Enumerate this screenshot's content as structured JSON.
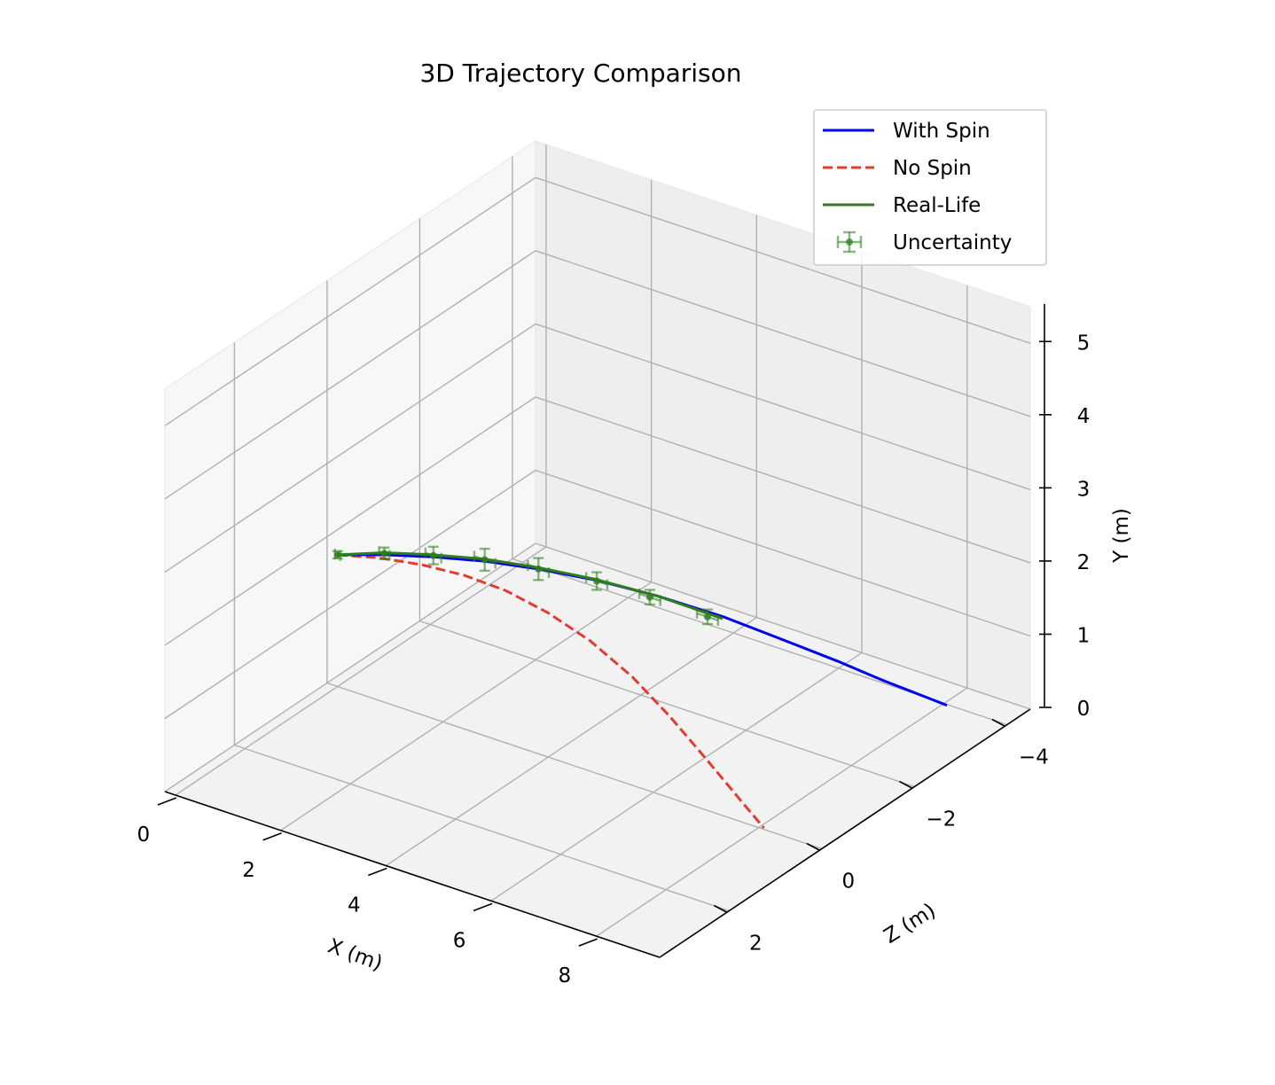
{
  "chart_data": {
    "type": "line",
    "projection": "3d",
    "title": "3D Trajectory Comparison",
    "xlabel": "X (m)",
    "ylabel": "Y (m)",
    "zlabel": "Z (m)",
    "xlim": [
      -0.2,
      9.2
    ],
    "ylim": [
      0,
      5.5
    ],
    "zlim": [
      -4.5,
      3.5
    ],
    "x_ticks": [
      0,
      2,
      4,
      6,
      8
    ],
    "y_ticks": [
      0,
      1,
      2,
      3,
      4,
      5
    ],
    "z_ticks": [
      -4,
      -2,
      0,
      2
    ],
    "x_tick_labels": [
      "0",
      "2",
      "4",
      "6",
      "8"
    ],
    "y_tick_labels": [
      "0",
      "1",
      "2",
      "3",
      "4",
      "5"
    ],
    "z_tick_labels": [
      "−4",
      "−2",
      "0",
      "2"
    ],
    "grid": true,
    "legend_position": "top-right",
    "series": [
      {
        "name": "With Spin",
        "color": "#0000ee",
        "style": "solid",
        "x": [
          0,
          0.8,
          1.6,
          2.4,
          3.2,
          4.0,
          4.8,
          5.6,
          6.3,
          6.9,
          7.4,
          7.8,
          8.1
        ],
        "y": [
          1.8,
          1.95,
          2.05,
          2.1,
          2.08,
          1.97,
          1.78,
          1.48,
          1.12,
          0.76,
          0.45,
          0.2,
          0.02
        ],
        "z": [
          0,
          -0.1,
          -0.25,
          -0.45,
          -0.7,
          -1.05,
          -1.45,
          -1.95,
          -2.45,
          -2.95,
          -3.35,
          -3.7,
          -3.95
        ]
      },
      {
        "name": "No Spin",
        "color": "#e03c31",
        "style": "dashed",
        "x": [
          0,
          0.8,
          1.6,
          2.4,
          3.2,
          4.0,
          4.8,
          5.6,
          6.3,
          6.9,
          7.4,
          7.8,
          8.1
        ],
        "y": [
          1.8,
          1.95,
          2.05,
          2.1,
          2.08,
          1.97,
          1.78,
          1.48,
          1.12,
          0.76,
          0.45,
          0.2,
          0.02
        ],
        "z": [
          0,
          0,
          0,
          0,
          0,
          0,
          0,
          0,
          0,
          0,
          0,
          0,
          0
        ]
      },
      {
        "name": "Real-Life",
        "color": "#2e7d1e",
        "style": "solid",
        "x": [
          0,
          0.8,
          1.6,
          2.4,
          3.2,
          4.0,
          4.8,
          5.6
        ],
        "y": [
          1.8,
          1.98,
          2.08,
          2.13,
          2.1,
          1.98,
          1.78,
          1.45
        ],
        "z": [
          0,
          -0.1,
          -0.25,
          -0.45,
          -0.7,
          -1.05,
          -1.45,
          -1.95
        ]
      },
      {
        "name": "Uncertainty",
        "color": "#2e7d1e",
        "style": "errorbar",
        "x": [
          0,
          0.8,
          1.6,
          2.4,
          3.2,
          4.0,
          4.7,
          5.4
        ],
        "y": [
          1.8,
          1.97,
          2.07,
          2.12,
          2.08,
          1.96,
          1.76,
          1.47
        ],
        "z": [
          0,
          -0.1,
          -0.25,
          -0.45,
          -0.7,
          -1.05,
          -1.4,
          -1.85
        ],
        "xerr": [
          0.05,
          0.1,
          0.15,
          0.2,
          0.2,
          0.2,
          0.2,
          0.2
        ],
        "yerr": [
          0.05,
          0.08,
          0.12,
          0.15,
          0.15,
          0.12,
          0.1,
          0.1
        ]
      }
    ]
  }
}
